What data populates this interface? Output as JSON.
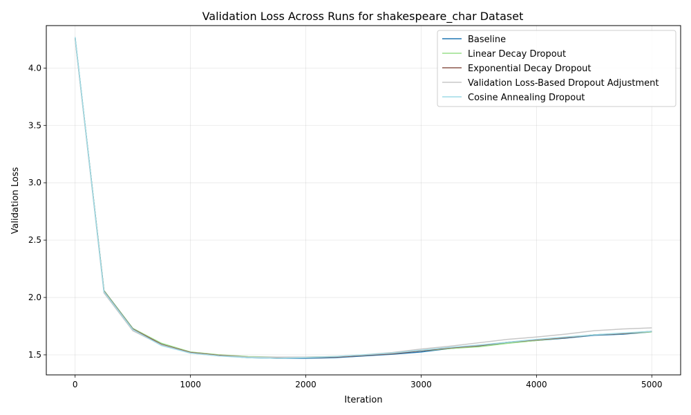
{
  "chart_data": {
    "type": "line",
    "title": "Validation Loss Across Runs for shakespeare_char Dataset",
    "xlabel": "Iteration",
    "ylabel": "Validation Loss",
    "xlim": [
      -250,
      5250
    ],
    "ylim": [
      1.325,
      4.37
    ],
    "xticks": [
      0,
      1000,
      2000,
      3000,
      4000,
      5000
    ],
    "yticks": [
      1.5,
      2.0,
      2.5,
      3.0,
      3.5,
      4.0
    ],
    "ytick_labels": [
      "1.5",
      "2.0",
      "2.5",
      "3.0",
      "3.5",
      "4.0"
    ],
    "grid": true,
    "legend_position": "top-right",
    "series": [
      {
        "name": "Baseline",
        "color": "#1f77b4",
        "x": [
          0,
          250,
          500,
          750,
          1000,
          1250,
          1500,
          1750,
          2000,
          2250,
          2500,
          2750,
          3000,
          3250,
          3500,
          3750,
          4000,
          4250,
          4500,
          4750,
          5000
        ],
        "y": [
          4.26,
          2.06,
          1.73,
          1.595,
          1.52,
          1.495,
          1.475,
          1.47,
          1.47,
          1.475,
          1.49,
          1.505,
          1.525,
          1.555,
          1.575,
          1.605,
          1.625,
          1.645,
          1.67,
          1.68,
          1.7
        ]
      },
      {
        "name": "Linear Decay Dropout",
        "color": "#98df8a",
        "x": [
          0,
          250,
          500,
          750,
          1000,
          1250,
          1500,
          1750,
          2000,
          2250,
          2500,
          2750,
          3000,
          3250,
          3500,
          3750,
          4000,
          4250,
          4500,
          4750,
          5000
        ],
        "y": [
          4.26,
          2.06,
          1.73,
          1.6,
          1.525,
          1.5,
          1.485,
          1.48,
          1.48,
          1.485,
          1.495,
          1.515,
          1.535,
          1.555,
          1.57,
          1.6,
          1.625,
          1.65,
          1.675,
          1.685,
          1.7
        ]
      },
      {
        "name": "Exponential Decay Dropout",
        "color": "#8c564b",
        "x": [
          0,
          250,
          500,
          750,
          1000,
          1250,
          1500,
          1750,
          2000,
          2250,
          2500,
          2750,
          3000,
          3250,
          3500,
          3750,
          4000,
          4250,
          4500,
          4750,
          5000
        ],
        "y": [
          4.26,
          2.055,
          1.725,
          1.59,
          1.52,
          1.495,
          1.48,
          1.475,
          1.475,
          1.48,
          1.495,
          1.51,
          1.535,
          1.56,
          1.58,
          1.61,
          1.63,
          1.65,
          1.675,
          1.685,
          1.705
        ]
      },
      {
        "name": "Validation Loss-Based Dropout Adjustment",
        "color": "#c7c7c7",
        "x": [
          0,
          250,
          500,
          750,
          1000,
          1250,
          1500,
          1750,
          2000,
          2250,
          2500,
          2750,
          3000,
          3250,
          3500,
          3750,
          4000,
          4250,
          4500,
          4750,
          5000
        ],
        "y": [
          4.25,
          2.04,
          1.71,
          1.585,
          1.515,
          1.49,
          1.48,
          1.48,
          1.48,
          1.485,
          1.5,
          1.52,
          1.55,
          1.575,
          1.605,
          1.635,
          1.655,
          1.68,
          1.71,
          1.725,
          1.735
        ]
      },
      {
        "name": "Cosine Annealing Dropout",
        "color": "#9edae5",
        "x": [
          0,
          250,
          500,
          750,
          1000,
          1250,
          1500,
          1750,
          2000,
          2250,
          2500,
          2750,
          3000,
          3250,
          3500,
          3750,
          4000,
          4250,
          4500,
          4750,
          5000
        ],
        "y": [
          4.27,
          2.05,
          1.72,
          1.58,
          1.515,
          1.49,
          1.475,
          1.47,
          1.475,
          1.485,
          1.5,
          1.515,
          1.54,
          1.565,
          1.585,
          1.61,
          1.635,
          1.655,
          1.675,
          1.69,
          1.705
        ]
      }
    ]
  }
}
